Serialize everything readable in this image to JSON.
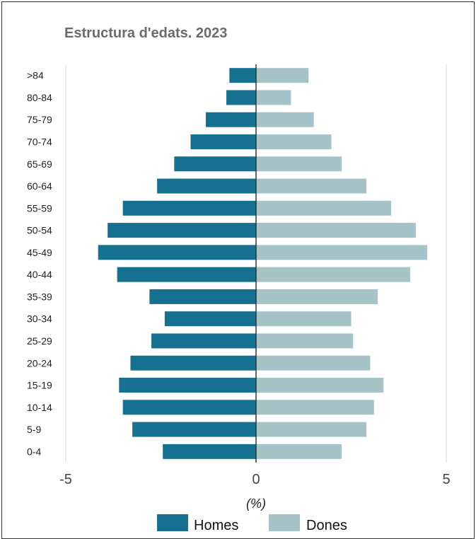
{
  "chart_data": {
    "type": "bar",
    "orientation": "horizontal",
    "title": "Estructura d'edats. 2023",
    "xlabel": "(%)",
    "ylabel": "",
    "xlim": [
      -5,
      5
    ],
    "xticks": [
      "-5",
      "0",
      "5"
    ],
    "grid": true,
    "legend_position": "bottom",
    "categories": [
      "0-4",
      "5-9",
      "10-14",
      "15-19",
      "20-24",
      "25-29",
      "30-34",
      "35-39",
      "40-44",
      "45-49",
      "50-54",
      "55-59",
      "60-64",
      "65-69",
      "70-74",
      "75-79",
      "80-84",
      ">84"
    ],
    "series": [
      {
        "name": "Homes",
        "color": "#16708f",
        "values": [
          -2.45,
          -3.25,
          -3.5,
          -3.6,
          -3.3,
          -2.75,
          -2.4,
          -2.8,
          -3.65,
          -4.15,
          -3.9,
          -3.5,
          -2.6,
          -2.15,
          -1.72,
          -1.32,
          -0.78,
          -0.7
        ]
      },
      {
        "name": "Dones",
        "color": "#a6c3c8",
        "values": [
          2.25,
          2.9,
          3.1,
          3.35,
          3.0,
          2.55,
          2.5,
          3.2,
          4.05,
          4.5,
          4.2,
          3.55,
          2.9,
          2.25,
          1.98,
          1.52,
          0.92,
          1.38
        ]
      }
    ]
  }
}
